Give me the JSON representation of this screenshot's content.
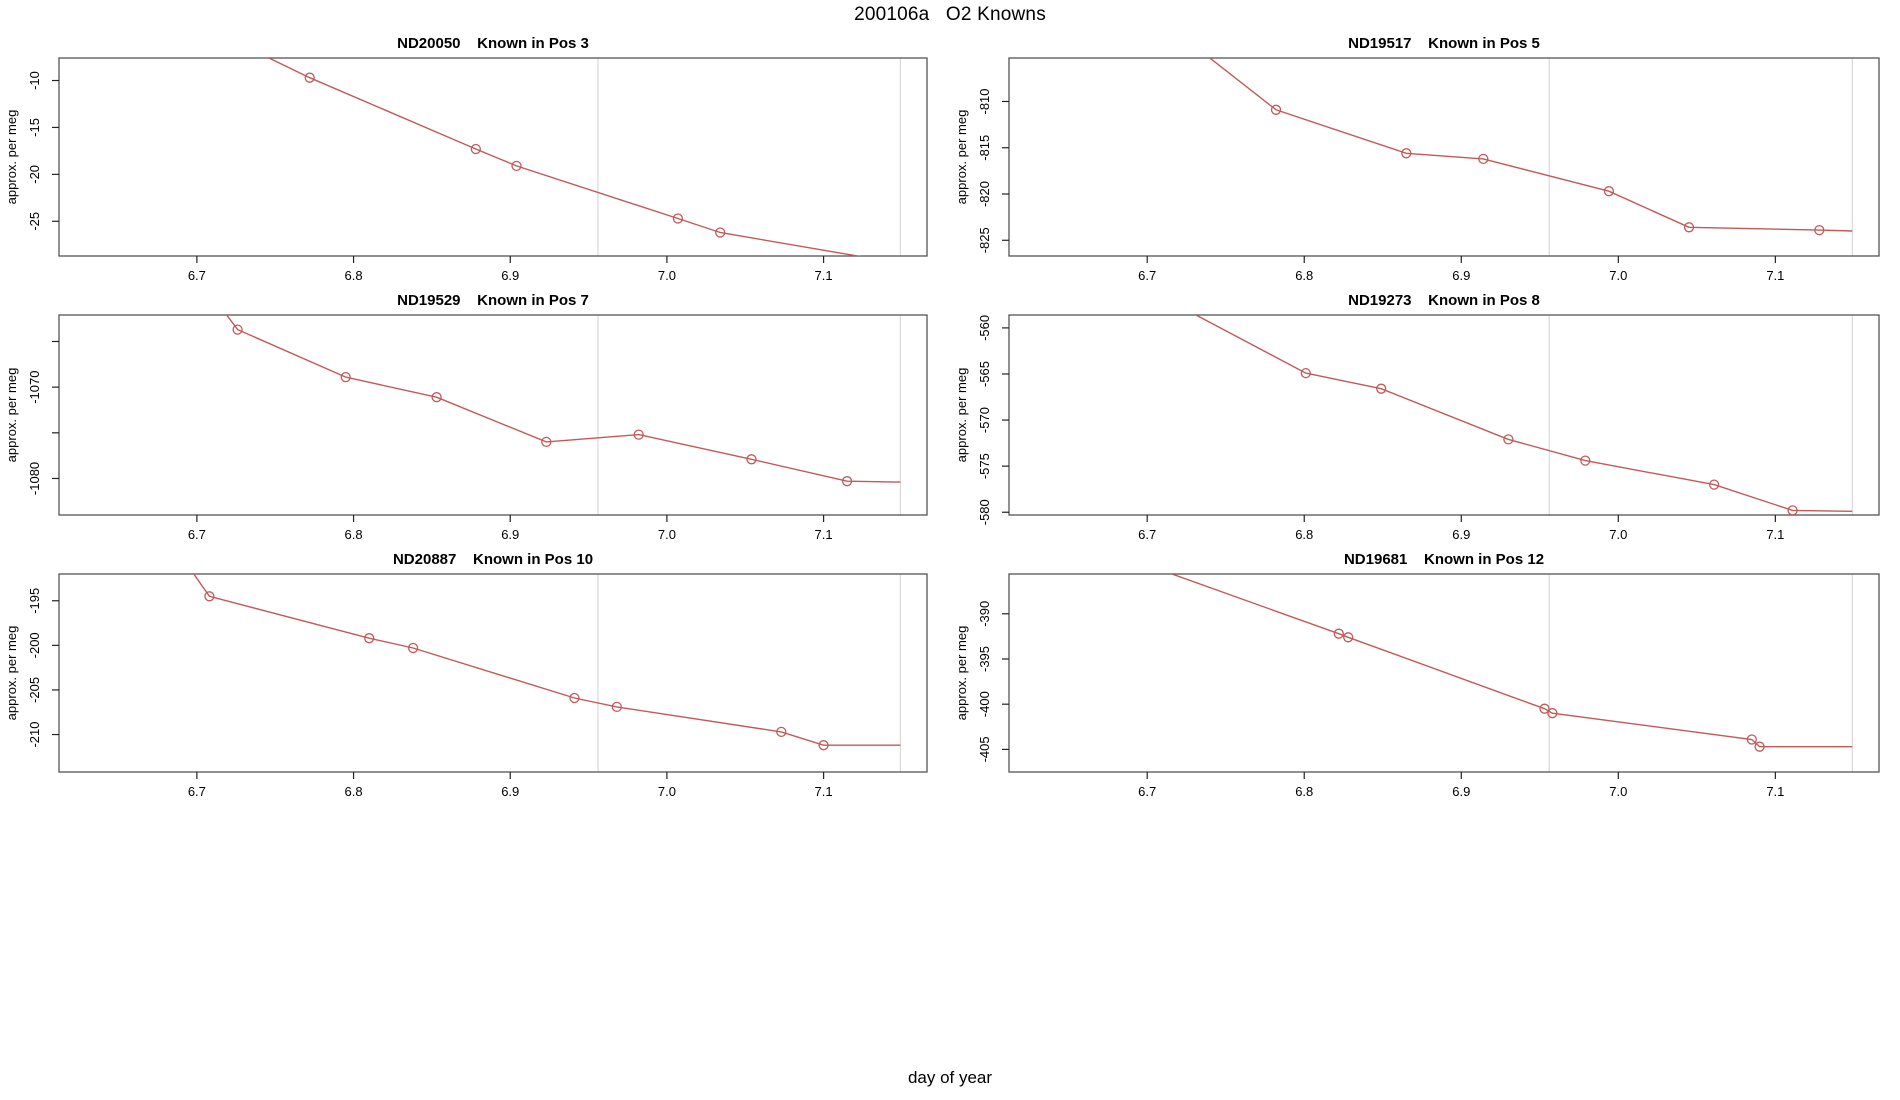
{
  "page_title": "200106a   O2 Knowns",
  "chart_data": {
    "type": "line",
    "title": "200106a   O2 Knowns",
    "xlabel": "day of year",
    "ylabel": "approx. per meg",
    "xlim": [
      6.612,
      7.166
    ],
    "x_ticks": [
      {
        "v": 6.7,
        "label": "6.7"
      },
      {
        "v": 6.8,
        "label": "6.8"
      },
      {
        "v": 6.9,
        "label": "6.9"
      },
      {
        "v": 7.0,
        "label": "7.0"
      },
      {
        "v": 7.1,
        "label": "7.1"
      }
    ],
    "vertical_gridlines": [
      6.956,
      7.149
    ],
    "grid": "vertical-only",
    "legend": "none",
    "line_color": "#c05a5a",
    "grid_color": "#d9d9d9",
    "box_color": "#555555",
    "tick_color": "#222222",
    "charts": [
      {
        "title": "ND20050    Known in Pos 3",
        "sample_id": "ND20050",
        "position_label": "Known in Pos 3",
        "ylim": [
          -28.7,
          -7.6
        ],
        "y_ticks": [
          {
            "v": -10,
            "label": "-10"
          },
          {
            "v": -15,
            "label": "-15"
          },
          {
            "v": -20,
            "label": "-20"
          },
          {
            "v": -25,
            "label": "-25"
          }
        ],
        "points": [
          [
            6.772,
            -9.7
          ],
          [
            6.878,
            -17.3
          ],
          [
            6.904,
            -19.1
          ],
          [
            7.007,
            -24.7
          ],
          [
            7.034,
            -26.2
          ]
        ],
        "line_path": [
          [
            6.72,
            -5.5
          ],
          [
            6.772,
            -9.7
          ],
          [
            6.878,
            -17.3
          ],
          [
            6.904,
            -19.1
          ],
          [
            7.007,
            -24.7
          ],
          [
            7.034,
            -26.2
          ],
          [
            7.16,
            -29.8
          ]
        ]
      },
      {
        "title": "ND19517    Known in Pos 5",
        "sample_id": "ND19517",
        "position_label": "Known in Pos 5",
        "ylim": [
          -826.7,
          -805.3
        ],
        "y_ticks": [
          {
            "v": -810,
            "label": "-810"
          },
          {
            "v": -815,
            "label": "-815"
          },
          {
            "v": -820,
            "label": "-820"
          },
          {
            "v": -825,
            "label": "-825"
          }
        ],
        "points": [
          [
            6.782,
            -810.9
          ],
          [
            6.865,
            -815.6
          ],
          [
            6.914,
            -816.2
          ],
          [
            6.994,
            -819.7
          ],
          [
            7.045,
            -823.6
          ],
          [
            7.128,
            -823.9
          ]
        ],
        "line_path": [
          [
            6.7,
            -800.0
          ],
          [
            6.782,
            -810.9
          ],
          [
            6.865,
            -815.6
          ],
          [
            6.914,
            -816.2
          ],
          [
            6.994,
            -819.7
          ],
          [
            7.045,
            -823.6
          ],
          [
            7.128,
            -823.9
          ],
          [
            7.149,
            -824.0
          ]
        ]
      },
      {
        "title": "ND19529    Known in Pos 7",
        "sample_id": "ND19529",
        "position_label": "Known in Pos 7",
        "ylim": [
          -1084.0,
          -1062.1
        ],
        "y_ticks": [
          {
            "v": -1065,
            "label": ""
          },
          {
            "v": -1070,
            "label": "-1070"
          },
          {
            "v": -1075,
            "label": ""
          },
          {
            "v": -1080,
            "label": "-1080"
          }
        ],
        "points": [
          [
            6.726,
            -1063.7
          ],
          [
            6.795,
            -1068.9
          ],
          [
            6.853,
            -1071.1
          ],
          [
            6.923,
            -1076.0
          ],
          [
            6.982,
            -1075.2
          ],
          [
            7.054,
            -1077.9
          ],
          [
            7.115,
            -1080.3
          ]
        ],
        "line_path": [
          [
            6.712,
            -1060.5
          ],
          [
            6.726,
            -1063.7
          ],
          [
            6.795,
            -1068.9
          ],
          [
            6.853,
            -1071.1
          ],
          [
            6.923,
            -1076.0
          ],
          [
            6.982,
            -1075.2
          ],
          [
            7.054,
            -1077.9
          ],
          [
            7.115,
            -1080.3
          ],
          [
            7.149,
            -1080.4
          ]
        ]
      },
      {
        "title": "ND19273    Known in Pos 8",
        "sample_id": "ND19273",
        "position_label": "Known in Pos 8",
        "ylim": [
          -580.3,
          -558.6
        ],
        "y_ticks": [
          {
            "v": -560,
            "label": "-560"
          },
          {
            "v": -565,
            "label": "-565"
          },
          {
            "v": -570,
            "label": "-570"
          },
          {
            "v": -575,
            "label": "-575"
          },
          {
            "v": -580,
            "label": "-580"
          }
        ],
        "points": [
          [
            6.801,
            -564.9
          ],
          [
            6.849,
            -566.6
          ],
          [
            6.93,
            -572.1
          ],
          [
            6.979,
            -574.4
          ],
          [
            7.061,
            -577.0
          ],
          [
            7.111,
            -579.8
          ]
        ],
        "line_path": [
          [
            6.7,
            -555.8
          ],
          [
            6.801,
            -564.9
          ],
          [
            6.849,
            -566.6
          ],
          [
            6.93,
            -572.1
          ],
          [
            6.979,
            -574.4
          ],
          [
            7.061,
            -577.0
          ],
          [
            7.111,
            -579.8
          ],
          [
            7.149,
            -579.9
          ]
        ]
      },
      {
        "title": "ND20887    Known in Pos 10",
        "sample_id": "ND20887",
        "position_label": "Known in Pos 10",
        "ylim": [
          -214.2,
          -192.0
        ],
        "y_ticks": [
          {
            "v": -195,
            "label": "-195"
          },
          {
            "v": -200,
            "label": "-200"
          },
          {
            "v": -205,
            "label": "-205"
          },
          {
            "v": -210,
            "label": "-210"
          }
        ],
        "points": [
          [
            6.708,
            -194.5
          ],
          [
            6.81,
            -199.2
          ],
          [
            6.838,
            -200.3
          ],
          [
            6.941,
            -205.9
          ],
          [
            6.968,
            -206.9
          ],
          [
            7.073,
            -209.7
          ],
          [
            7.1,
            -211.2
          ]
        ],
        "line_path": [
          [
            6.69,
            -190.0
          ],
          [
            6.708,
            -194.5
          ],
          [
            6.81,
            -199.2
          ],
          [
            6.838,
            -200.3
          ],
          [
            6.941,
            -205.9
          ],
          [
            6.968,
            -206.9
          ],
          [
            7.073,
            -209.7
          ],
          [
            7.1,
            -211.2
          ],
          [
            7.149,
            -211.2
          ]
        ]
      },
      {
        "title": "ND19681    Known in Pos 12",
        "sample_id": "ND19681",
        "position_label": "Known in Pos 12",
        "ylim": [
          -407.5,
          -385.6
        ],
        "y_ticks": [
          {
            "v": -390,
            "label": "-390"
          },
          {
            "v": -395,
            "label": "-395"
          },
          {
            "v": -400,
            "label": "-400"
          },
          {
            "v": -405,
            "label": "-405"
          }
        ],
        "points": [
          [
            6.822,
            -392.2
          ],
          [
            6.828,
            -392.6
          ],
          [
            6.953,
            -400.5
          ],
          [
            6.958,
            -401.0
          ],
          [
            7.085,
            -403.9
          ],
          [
            7.09,
            -404.7
          ]
        ],
        "line_path": [
          [
            6.69,
            -384.0
          ],
          [
            6.822,
            -392.2
          ],
          [
            6.828,
            -392.6
          ],
          [
            6.953,
            -400.5
          ],
          [
            6.958,
            -401.0
          ],
          [
            7.085,
            -403.9
          ],
          [
            7.09,
            -404.7
          ],
          [
            7.149,
            -404.7
          ]
        ]
      }
    ]
  }
}
